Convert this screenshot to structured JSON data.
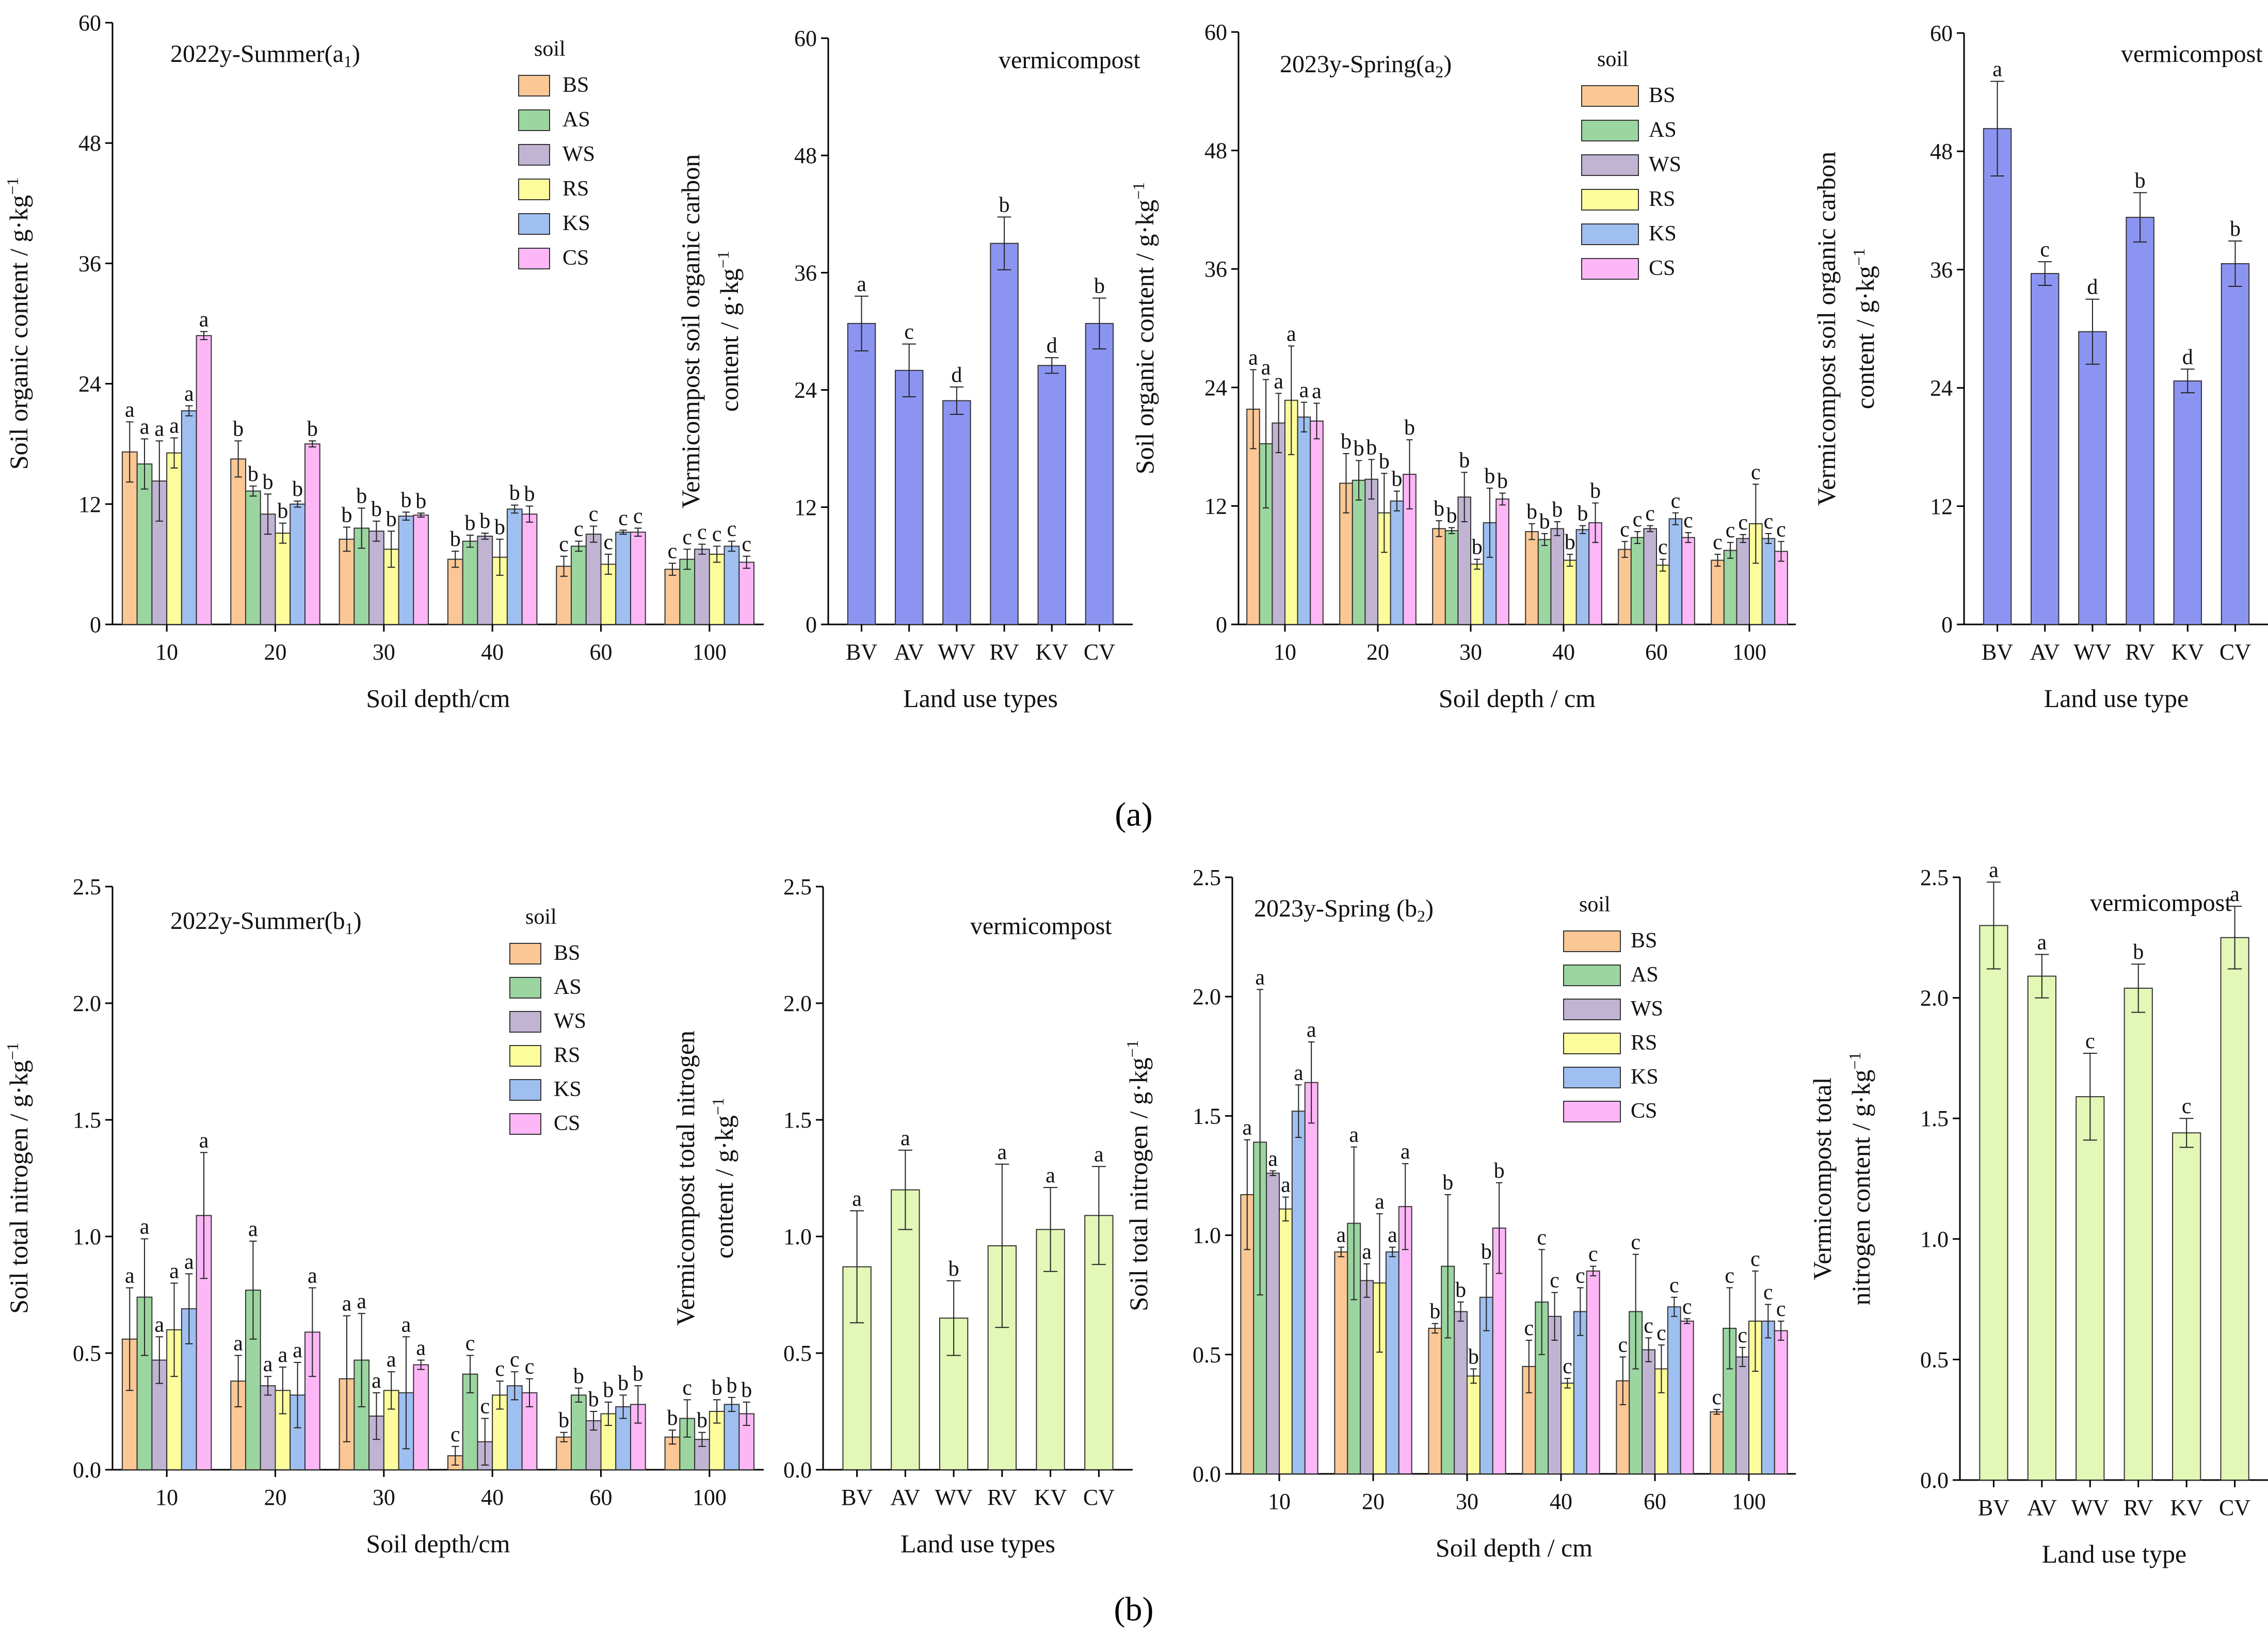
{
  "captions": {
    "a": "(a)",
    "b": "(b)"
  },
  "colors": {
    "soil": [
      "#fac795",
      "#9bd5a0",
      "#c1b4d3",
      "#fdfc9c",
      "#9fbff0",
      "#fdb7f7"
    ],
    "vermi_a": "#8c94f2",
    "vermi_b": "#e3f7b6"
  },
  "chart_data": [
    {
      "type": "bar",
      "title": "2022y-Summer",
      "title_sub": "1",
      "title_letter": "a",
      "legend_title": "soil",
      "xlabel": "Soil depth/cm",
      "ylabel": "Soil organic content / g·kg",
      "ylabel_sup": "−1",
      "ylim": [
        0,
        60
      ],
      "yticks": [
        "0",
        "12",
        "24",
        "36",
        "48",
        "60"
      ],
      "categories": [
        "10",
        "20",
        "30",
        "40",
        "60",
        "100"
      ],
      "series": [
        {
          "name": "BS",
          "values": [
            17.2,
            16.5,
            8.5,
            6.5,
            5.8,
            5.5
          ],
          "errors": [
            3.0,
            1.8,
            1.2,
            0.8,
            1.0,
            0.6
          ],
          "letters": [
            "a",
            "b",
            "b",
            "b",
            "c",
            "c"
          ]
        },
        {
          "name": "AS",
          "values": [
            16.0,
            13.3,
            9.6,
            8.3,
            7.8,
            6.5
          ],
          "errors": [
            2.5,
            0.5,
            2.0,
            0.6,
            0.5,
            1.0
          ],
          "letters": [
            "a",
            "b",
            "b",
            "b",
            "c",
            "c"
          ]
        },
        {
          "name": "WS",
          "values": [
            14.3,
            11.0,
            9.3,
            8.8,
            9.0,
            7.5
          ],
          "errors": [
            4.0,
            2.0,
            1.0,
            0.3,
            0.8,
            0.5
          ],
          "letters": [
            "a",
            "b",
            "b",
            "b",
            "c",
            "c"
          ]
        },
        {
          "name": "RS",
          "values": [
            17.1,
            9.1,
            7.5,
            6.7,
            6.0,
            7.0
          ],
          "errors": [
            1.5,
            1.0,
            1.8,
            1.8,
            1.0,
            0.8
          ],
          "letters": [
            "a",
            "b",
            "b",
            "b",
            "c",
            "c"
          ]
        },
        {
          "name": "KS",
          "values": [
            21.3,
            12.0,
            10.8,
            11.5,
            9.2,
            7.8
          ],
          "errors": [
            0.5,
            0.3,
            0.4,
            0.4,
            0.2,
            0.5
          ],
          "letters": [
            "a",
            "b",
            "b",
            "b",
            "c",
            "c"
          ]
        },
        {
          "name": "CS",
          "values": [
            28.8,
            18.0,
            10.9,
            11.0,
            9.2,
            6.2
          ],
          "errors": [
            0.4,
            0.3,
            0.2,
            0.8,
            0.4,
            0.6
          ],
          "letters": [
            "a",
            "b",
            "b",
            "b",
            "c",
            "c"
          ]
        }
      ]
    },
    {
      "type": "bar",
      "title": "vermicompost",
      "xlabel": "Land use types",
      "ylabel_line1": "Vermicompost soil organic carbon",
      "ylabel_line2": "content / g·kg",
      "ylabel_sup": "−1",
      "ylim": [
        0,
        60
      ],
      "yticks": [
        "0",
        "12",
        "24",
        "36",
        "48",
        "60"
      ],
      "categories": [
        "BV",
        "AV",
        "WV",
        "RV",
        "KV",
        "CV"
      ],
      "values": [
        30.8,
        26.0,
        22.9,
        39.0,
        26.5,
        30.8
      ],
      "errors": [
        2.8,
        2.7,
        1.4,
        2.7,
        0.8,
        2.6
      ],
      "letters": [
        "a",
        "c",
        "d",
        "b",
        "d",
        "b"
      ]
    },
    {
      "type": "bar",
      "title": "2023y-Spring",
      "title_sub": "2",
      "title_letter": "a",
      "legend_title": "soil",
      "xlabel": "Soil depth / cm",
      "ylabel": "Soil organic content / g·kg",
      "ylabel_sup": "−1",
      "ylim": [
        0,
        60
      ],
      "yticks": [
        "0",
        "12",
        "24",
        "36",
        "48",
        "60"
      ],
      "categories": [
        "10",
        "20",
        "30",
        "40",
        "60",
        "100"
      ],
      "series": [
        {
          "name": "BS",
          "values": [
            21.8,
            14.3,
            9.7,
            9.4,
            7.6,
            6.5
          ],
          "errors": [
            4.0,
            3.0,
            0.8,
            0.8,
            0.8,
            0.6
          ],
          "letters": [
            "a",
            "b",
            "b",
            "b",
            "c",
            "c"
          ]
        },
        {
          "name": "AS",
          "values": [
            18.3,
            14.6,
            9.5,
            8.6,
            8.8,
            7.5
          ],
          "errors": [
            6.5,
            2.0,
            0.3,
            0.6,
            0.6,
            0.8
          ],
          "letters": [
            "a",
            "b",
            "b",
            "b",
            "c",
            "c"
          ]
        },
        {
          "name": "WS",
          "values": [
            20.4,
            14.7,
            12.9,
            9.7,
            9.7,
            8.7
          ],
          "errors": [
            3.0,
            2.0,
            2.5,
            0.7,
            0.3,
            0.4
          ],
          "letters": [
            "a",
            "b",
            "b",
            "b",
            "c",
            "c"
          ]
        },
        {
          "name": "RS",
          "values": [
            22.7,
            11.3,
            6.1,
            6.5,
            6.0,
            10.2
          ],
          "errors": [
            5.5,
            4.0,
            0.5,
            0.6,
            0.6,
            4.0
          ],
          "letters": [
            "a",
            "b",
            "b",
            "b",
            "c",
            "c"
          ]
        },
        {
          "name": "KS",
          "values": [
            21.0,
            12.5,
            10.3,
            9.6,
            10.7,
            8.7
          ],
          "errors": [
            1.5,
            1.0,
            3.5,
            0.4,
            0.6,
            0.5
          ],
          "letters": [
            "a",
            "b",
            "b",
            "b",
            "c",
            "c"
          ]
        },
        {
          "name": "CS",
          "values": [
            20.6,
            15.2,
            12.7,
            10.3,
            8.8,
            7.4
          ],
          "errors": [
            1.8,
            3.5,
            0.6,
            2.0,
            0.5,
            1.0
          ],
          "letters": [
            "a",
            "b",
            "b",
            "b",
            "c",
            "c"
          ]
        }
      ]
    },
    {
      "type": "bar",
      "title": "vermicompost",
      "xlabel": "Land use type",
      "ylabel_line1": "Vermicompost soil organic carbon",
      "ylabel_line2": "content / g·kg",
      "ylabel_sup": "−1",
      "ylim": [
        0,
        60
      ],
      "yticks": [
        "0",
        "12",
        "24",
        "36",
        "48",
        "60"
      ],
      "categories": [
        "BV",
        "AV",
        "WV",
        "RV",
        "KV",
        "CV"
      ],
      "values": [
        50.3,
        35.6,
        29.7,
        41.3,
        24.7,
        36.6
      ],
      "errors": [
        4.8,
        1.2,
        3.3,
        2.5,
        1.2,
        2.3
      ],
      "letters": [
        "a",
        "c",
        "d",
        "b",
        "d",
        "b"
      ]
    },
    {
      "type": "bar",
      "title": "2022y-Summer",
      "title_sub": "1",
      "title_letter": "b",
      "legend_title": "soil",
      "xlabel": "Soil depth/cm",
      "ylabel": "Soil total nitrogen / g·kg",
      "ylabel_sup": "−1",
      "ylim": [
        0,
        2.5
      ],
      "yticks": [
        "0.0",
        "0.5",
        "1.0",
        "1.5",
        "2.0",
        "2.5"
      ],
      "categories": [
        "10",
        "20",
        "30",
        "40",
        "60",
        "100"
      ],
      "series": [
        {
          "name": "BS",
          "values": [
            0.56,
            0.38,
            0.39,
            0.06,
            0.14,
            0.14
          ],
          "errors": [
            0.22,
            0.11,
            0.27,
            0.04,
            0.02,
            0.03
          ],
          "letters": [
            "a",
            "a",
            "a",
            "c",
            "b",
            "b"
          ]
        },
        {
          "name": "AS",
          "values": [
            0.74,
            0.77,
            0.47,
            0.41,
            0.32,
            0.22
          ],
          "errors": [
            0.25,
            0.21,
            0.2,
            0.08,
            0.03,
            0.08
          ],
          "letters": [
            "a",
            "a",
            "a",
            "c",
            "b",
            "c"
          ]
        },
        {
          "name": "WS",
          "values": [
            0.47,
            0.36,
            0.23,
            0.12,
            0.21,
            0.13
          ],
          "errors": [
            0.1,
            0.04,
            0.1,
            0.1,
            0.04,
            0.03
          ],
          "letters": [
            "a",
            "a",
            "a",
            "c",
            "b",
            "b"
          ]
        },
        {
          "name": "RS",
          "values": [
            0.6,
            0.34,
            0.34,
            0.32,
            0.24,
            0.25
          ],
          "errors": [
            0.2,
            0.1,
            0.08,
            0.06,
            0.05,
            0.05
          ],
          "letters": [
            "a",
            "a",
            "a",
            "c",
            "b",
            "b"
          ]
        },
        {
          "name": "KS",
          "values": [
            0.69,
            0.32,
            0.33,
            0.36,
            0.27,
            0.28
          ],
          "errors": [
            0.15,
            0.14,
            0.24,
            0.06,
            0.05,
            0.03
          ],
          "letters": [
            "a",
            "a",
            "a",
            "c",
            "b",
            "b"
          ]
        },
        {
          "name": "CS",
          "values": [
            1.09,
            0.59,
            0.45,
            0.33,
            0.28,
            0.24
          ],
          "errors": [
            0.27,
            0.19,
            0.02,
            0.06,
            0.08,
            0.05
          ],
          "letters": [
            "a",
            "a",
            "a",
            "c",
            "b",
            "b"
          ]
        }
      ]
    },
    {
      "type": "bar",
      "title": "vermicompost",
      "xlabel": "Land use types",
      "ylabel_line1": "Vermicompost total nitrogen",
      "ylabel_line2": "content / g·kg",
      "ylabel_sup": "−1",
      "ylim": [
        0,
        2.5
      ],
      "yticks": [
        "0.0",
        "0.5",
        "1.0",
        "1.5",
        "2.0",
        "2.5"
      ],
      "categories": [
        "BV",
        "AV",
        "WV",
        "RV",
        "KV",
        "CV"
      ],
      "values": [
        0.87,
        1.2,
        0.65,
        0.96,
        1.03,
        1.09
      ],
      "errors": [
        0.24,
        0.17,
        0.16,
        0.35,
        0.18,
        0.21
      ],
      "letters": [
        "a",
        "a",
        "b",
        "a",
        "a",
        "a"
      ]
    },
    {
      "type": "bar",
      "title": "2023y-Spring (b",
      "title_sub": "2",
      "title_close": ")",
      "legend_title": "soil",
      "xlabel": "Soil depth / cm",
      "ylabel": "Soil total nitrogen / g·kg",
      "ylabel_sup": "−1",
      "ylim": [
        0,
        2.5
      ],
      "yticks": [
        "0.0",
        "0.5",
        "1.0",
        "1.5",
        "2.0",
        "2.5"
      ],
      "categories": [
        "10",
        "20",
        "30",
        "40",
        "60",
        "100"
      ],
      "series": [
        {
          "name": "BS",
          "values": [
            1.17,
            0.93,
            0.61,
            0.45,
            0.39,
            0.26
          ],
          "errors": [
            0.23,
            0.02,
            0.02,
            0.11,
            0.1,
            0.01
          ],
          "letters": [
            "a",
            "a",
            "b",
            "c",
            "c",
            "c"
          ]
        },
        {
          "name": "AS",
          "values": [
            1.39,
            1.05,
            0.87,
            0.72,
            0.68,
            0.61
          ],
          "errors": [
            0.64,
            0.32,
            0.3,
            0.22,
            0.24,
            0.17
          ],
          "letters": [
            "a",
            "a",
            "b",
            "c",
            "c",
            "c"
          ]
        },
        {
          "name": "WS",
          "values": [
            1.26,
            0.81,
            0.68,
            0.66,
            0.52,
            0.49
          ],
          "errors": [
            0.01,
            0.07,
            0.04,
            0.1,
            0.05,
            0.04
          ],
          "letters": [
            "a",
            "a",
            "b",
            "c",
            "c",
            "c"
          ]
        },
        {
          "name": "RS",
          "values": [
            1.11,
            0.8,
            0.41,
            0.38,
            0.44,
            0.64
          ],
          "errors": [
            0.05,
            0.29,
            0.03,
            0.02,
            0.1,
            0.21
          ],
          "letters": [
            "a",
            "a",
            "b",
            "c",
            "c",
            "c"
          ]
        },
        {
          "name": "KS",
          "values": [
            1.52,
            0.93,
            0.74,
            0.68,
            0.7,
            0.64
          ],
          "errors": [
            0.11,
            0.02,
            0.14,
            0.1,
            0.04,
            0.07
          ],
          "letters": [
            "a",
            "a",
            "b",
            "c",
            "c",
            "c"
          ]
        },
        {
          "name": "CS",
          "values": [
            1.64,
            1.12,
            1.03,
            0.85,
            0.64,
            0.6
          ],
          "errors": [
            0.17,
            0.18,
            0.19,
            0.02,
            0.01,
            0.04
          ],
          "letters": [
            "a",
            "a",
            "b",
            "c",
            "c",
            "c"
          ]
        }
      ]
    },
    {
      "type": "bar",
      "title": "vermicompost",
      "xlabel": "Land use type",
      "ylabel_line1": "Vermicompost total",
      "ylabel_line2": "nitrogen content / g·kg",
      "ylabel_sup": "−1",
      "ylim": [
        0,
        2.5
      ],
      "yticks": [
        "0.0",
        "0.5",
        "1.0",
        "1.5",
        "2.0",
        "2.5"
      ],
      "categories": [
        "BV",
        "AV",
        "WV",
        "RV",
        "KV",
        "CV"
      ],
      "values": [
        2.3,
        2.09,
        1.59,
        2.04,
        1.44,
        2.25
      ],
      "errors": [
        0.18,
        0.09,
        0.18,
        0.1,
        0.06,
        0.13
      ],
      "letters": [
        "a",
        "a",
        "c",
        "b",
        "c",
        "a"
      ]
    }
  ]
}
